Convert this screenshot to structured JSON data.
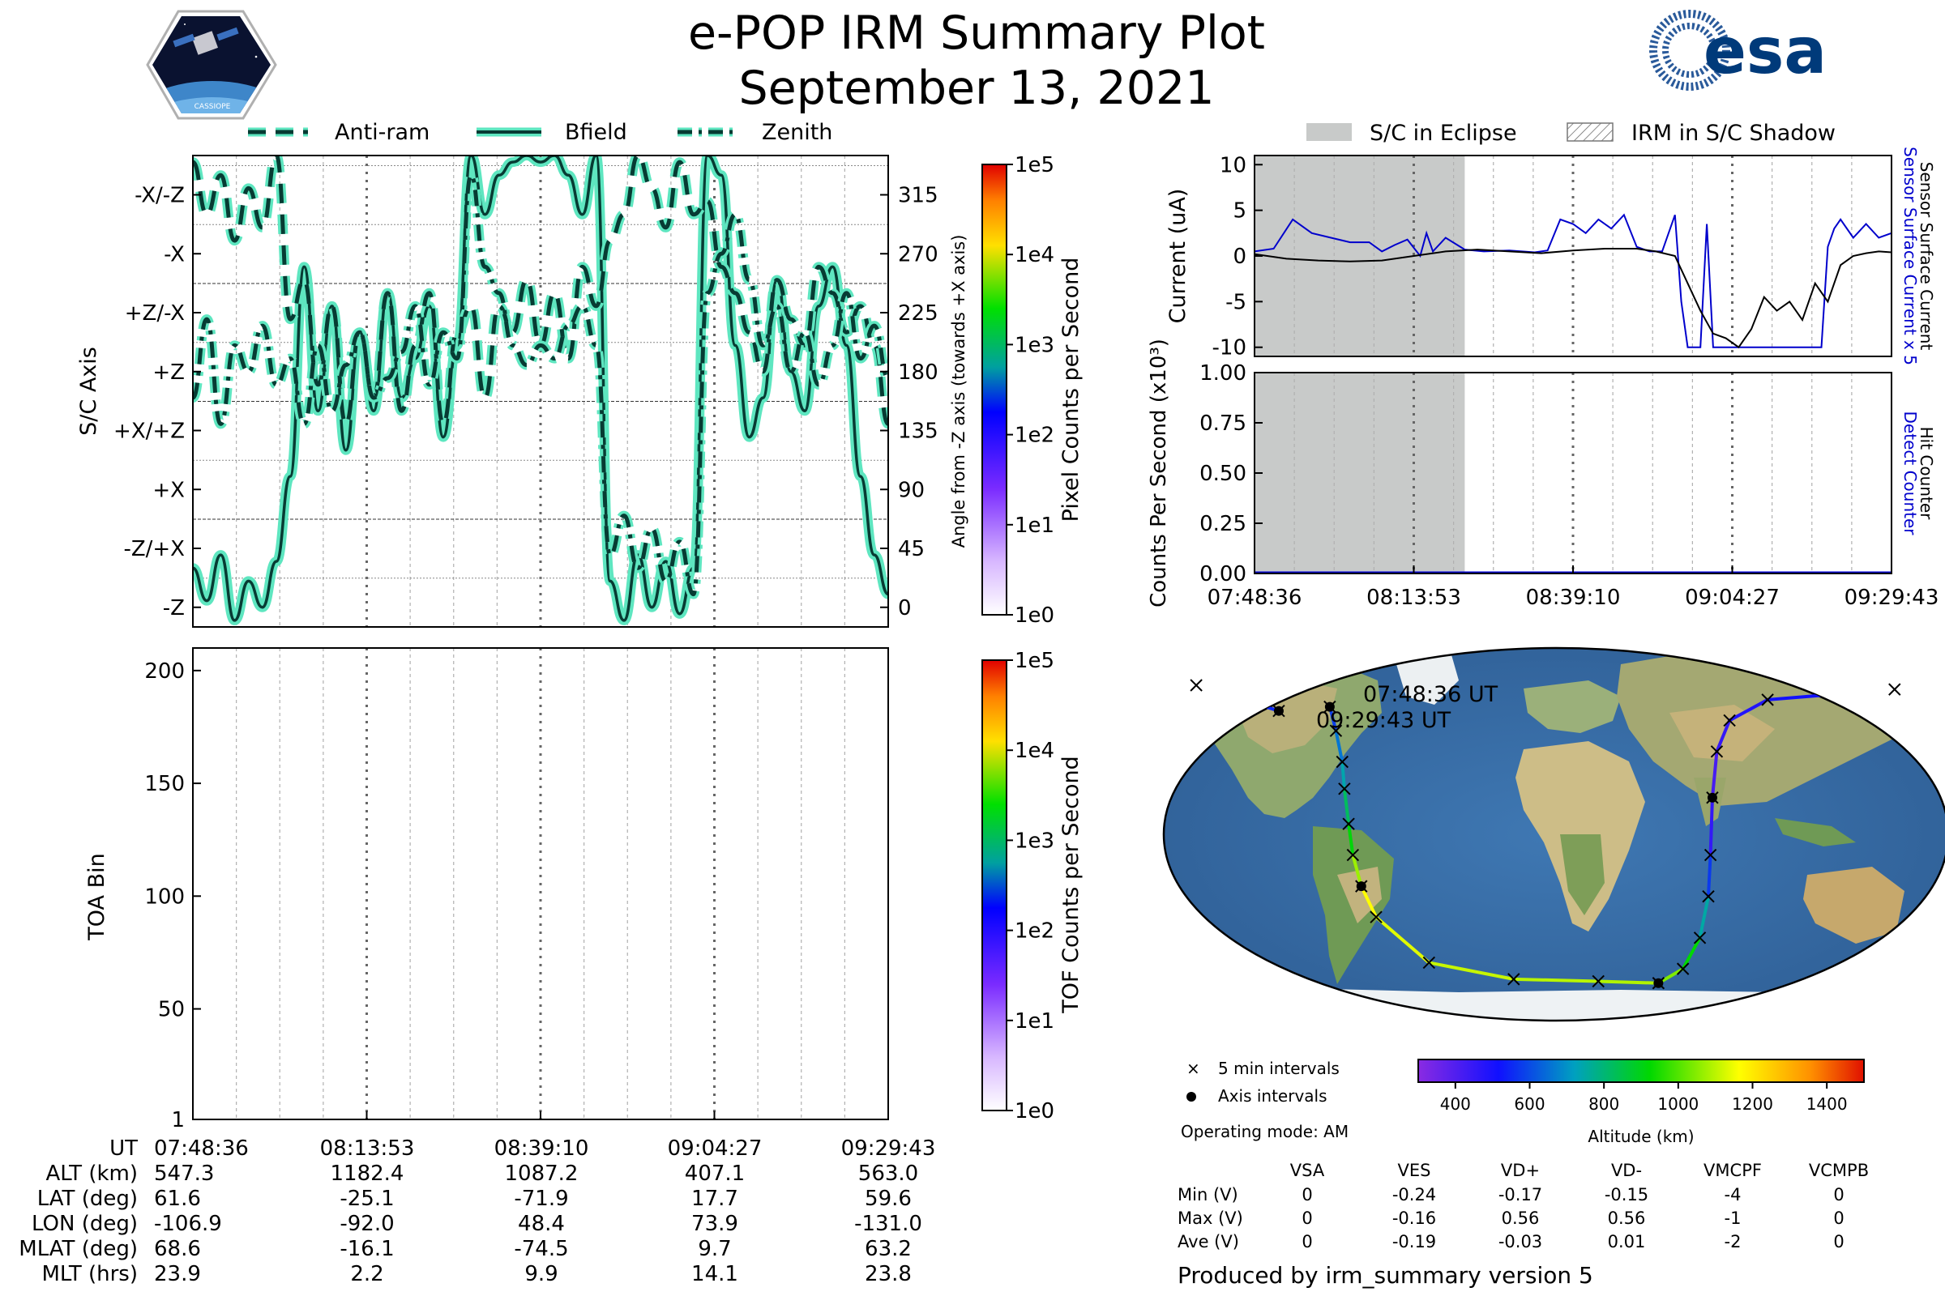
{
  "header": {
    "title": "e-POP IRM Summary Plot",
    "date": "September 13, 2021",
    "mission_logo_text": "CASSIOPE",
    "agency_logo_text": "esa"
  },
  "colors": {
    "trace_fill": "#5ee6c0",
    "trace_edge": "#073b33",
    "eclipse": "#c8cac9",
    "current_blue": "#0000cc",
    "counter_blue": "#0000cc"
  },
  "chart_data": [
    {
      "id": "sc-axis",
      "type": "line",
      "ylabel": "S/C Axis",
      "ylabel_right": "Angle from -Z axis (towards +X axis)",
      "y_axis_labels": [
        "-X/-Z",
        "-X",
        "+Z/-X",
        "+Z",
        "+X/+Z",
        "+X",
        "-Z/+X",
        "-Z"
      ],
      "y_right_ticks": [
        315,
        270,
        225,
        180,
        135,
        90,
        45,
        0
      ],
      "ylim": [
        -15,
        345
      ],
      "legend": [
        "Anti-ram",
        "Bfield",
        "Zenith"
      ],
      "legend_placement": "top",
      "colorbar": {
        "label": "Pixel Counts per Second",
        "ticks": [
          "1e0",
          "1e1",
          "1e2",
          "1e3",
          "1e4",
          "1e5"
        ]
      },
      "series": [
        {
          "name": "Bfield",
          "style": "solid",
          "x": [
            0,
            0.02,
            0.04,
            0.06,
            0.08,
            0.1,
            0.12,
            0.14,
            0.16,
            0.18,
            0.2,
            0.22,
            0.24,
            0.26,
            0.28,
            0.3,
            0.32,
            0.34,
            0.36,
            0.38,
            0.4,
            0.42,
            0.44,
            0.46,
            0.48,
            0.5,
            0.52,
            0.54,
            0.56,
            0.58,
            0.6,
            0.62,
            0.64,
            0.66,
            0.68,
            0.7,
            0.72,
            0.74,
            0.76,
            0.78,
            0.8,
            0.82,
            0.84,
            0.86,
            0.88,
            0.9,
            0.92,
            0.94,
            0.96,
            0.98,
            1
          ],
          "values": [
            30,
            5,
            40,
            -10,
            20,
            0,
            35,
            100,
            260,
            150,
            230,
            120,
            210,
            150,
            240,
            160,
            190,
            230,
            130,
            200,
            345,
            300,
            330,
            340,
            345,
            340,
            345,
            330,
            300,
            345,
            20,
            -10,
            40,
            0,
            35,
            -5,
            30,
            345,
            330,
            200,
            130,
            160,
            250,
            180,
            150,
            230,
            260,
            200,
            100,
            40,
            10
          ]
        },
        {
          "name": "Anti-ram",
          "style": "dashed",
          "x": [
            0,
            0.02,
            0.04,
            0.06,
            0.08,
            0.1,
            0.12,
            0.14,
            0.16,
            0.18,
            0.2,
            0.22,
            0.24,
            0.26,
            0.28,
            0.3,
            0.32,
            0.34,
            0.36,
            0.38,
            0.4,
            0.42,
            0.44,
            0.46,
            0.48,
            0.5,
            0.52,
            0.54,
            0.56,
            0.58,
            0.6,
            0.62,
            0.64,
            0.66,
            0.68,
            0.7,
            0.72,
            0.74,
            0.76,
            0.78,
            0.8,
            0.82,
            0.84,
            0.86,
            0.88,
            0.9,
            0.92,
            0.94,
            0.96,
            0.98,
            1
          ],
          "values": [
            340,
            300,
            330,
            280,
            320,
            290,
            345,
            220,
            250,
            170,
            230,
            140,
            210,
            160,
            240,
            150,
            200,
            240,
            140,
            210,
            230,
            160,
            230,
            210,
            250,
            200,
            240,
            190,
            260,
            230,
            280,
            300,
            345,
            320,
            290,
            340,
            300,
            310,
            260,
            240,
            210,
            180,
            250,
            220,
            200,
            260,
            240,
            210,
            230,
            200,
            140
          ]
        },
        {
          "name": "Zenith",
          "style": "dashdot",
          "x": [
            0,
            0.02,
            0.04,
            0.06,
            0.08,
            0.1,
            0.12,
            0.14,
            0.16,
            0.18,
            0.2,
            0.22,
            0.24,
            0.26,
            0.28,
            0.3,
            0.32,
            0.34,
            0.36,
            0.38,
            0.4,
            0.42,
            0.44,
            0.46,
            0.48,
            0.5,
            0.52,
            0.54,
            0.56,
            0.58,
            0.6,
            0.62,
            0.64,
            0.66,
            0.68,
            0.7,
            0.72,
            0.74,
            0.76,
            0.78,
            0.8,
            0.82,
            0.84,
            0.86,
            0.88,
            0.9,
            0.92,
            0.94,
            0.96,
            0.98,
            1
          ],
          "values": [
            160,
            220,
            140,
            200,
            180,
            215,
            170,
            190,
            140,
            200,
            150,
            185,
            210,
            160,
            175,
            195,
            230,
            170,
            210,
            190,
            330,
            260,
            240,
            200,
            185,
            200,
            190,
            215,
            230,
            200,
            40,
            70,
            30,
            60,
            20,
            50,
            10,
            240,
            270,
            300,
            250,
            200,
            230,
            180,
            210,
            170,
            200,
            240,
            190,
            215,
            175
          ]
        }
      ]
    },
    {
      "id": "toa",
      "type": "heatmap",
      "ylabel": "TOA Bin",
      "y_ticks": [
        1,
        50,
        100,
        150,
        200
      ],
      "ylim": [
        1,
        210
      ],
      "colorbar": {
        "label": "TOF Counts per Second",
        "ticks": [
          "1e0",
          "1e1",
          "1e2",
          "1e3",
          "1e4",
          "1e5"
        ]
      },
      "values": []
    },
    {
      "id": "current",
      "type": "line",
      "ylabel": "Current (uA)",
      "ylabel_right_1": "Sensor Surface Current x 5",
      "ylabel_right_2": "Sensor Surface Current",
      "y_ticks": [
        10,
        5,
        0,
        -5,
        -10
      ],
      "ylim": [
        -11,
        11
      ],
      "legend": [
        "S/C in Eclipse",
        "IRM in S/C Shadow"
      ],
      "legend_placement": "top",
      "eclipse_x": [
        0,
        0.33
      ],
      "series": [
        {
          "name": "Sensor Surface Current x 5",
          "color": "#0000cc",
          "x": [
            0,
            0.03,
            0.06,
            0.09,
            0.12,
            0.15,
            0.18,
            0.2,
            0.22,
            0.24,
            0.26,
            0.27,
            0.28,
            0.3,
            0.33,
            0.36,
            0.4,
            0.44,
            0.46,
            0.48,
            0.5,
            0.52,
            0.54,
            0.56,
            0.58,
            0.6,
            0.62,
            0.64,
            0.66,
            0.67,
            0.68,
            0.69,
            0.7,
            0.71,
            0.72,
            0.73,
            0.74,
            0.75,
            0.76,
            0.77,
            0.78,
            0.8,
            0.82,
            0.84,
            0.86,
            0.88,
            0.89,
            0.9,
            0.91,
            0.92,
            0.94,
            0.96,
            0.98,
            1
          ],
          "values": [
            0.5,
            0.8,
            4,
            2.5,
            2,
            1.5,
            1.5,
            0.5,
            1.2,
            1.8,
            0,
            2.5,
            0.5,
            2,
            0.7,
            0.5,
            0.6,
            0.4,
            0.6,
            4,
            3.5,
            2.5,
            4,
            3,
            4.5,
            1,
            0.5,
            0.5,
            4.5,
            -5,
            -10,
            -10,
            -10,
            3.5,
            -10,
            -10,
            -10,
            -10,
            -10,
            -10,
            -10,
            -10,
            -10,
            -10,
            -10,
            -10,
            -10,
            1,
            3,
            4,
            2,
            3.5,
            2,
            2.5
          ]
        },
        {
          "name": "Sensor Surface Current",
          "color": "#000000",
          "x": [
            0,
            0.05,
            0.1,
            0.15,
            0.2,
            0.25,
            0.3,
            0.35,
            0.4,
            0.45,
            0.5,
            0.55,
            0.6,
            0.63,
            0.66,
            0.68,
            0.7,
            0.72,
            0.74,
            0.76,
            0.78,
            0.8,
            0.82,
            0.84,
            0.86,
            0.88,
            0.9,
            0.92,
            0.94,
            0.96,
            0.98,
            1
          ],
          "values": [
            0.2,
            -0.3,
            -0.5,
            -0.6,
            -0.5,
            0,
            0.5,
            0.7,
            0.5,
            0.3,
            0.6,
            0.8,
            0.8,
            0.5,
            0,
            -3,
            -6,
            -8.5,
            -9,
            -10,
            -8,
            -4.5,
            -6,
            -5,
            -7,
            -3,
            -5,
            -1,
            0,
            0.3,
            0.5,
            0.4
          ]
        }
      ]
    },
    {
      "id": "counts",
      "type": "line",
      "ylabel": "Counts Per Second (x10³)",
      "ylabel_right_1": "Detect Counter",
      "ylabel_right_2": "Hit Counter",
      "y_ticks": [
        "1.00",
        "0.75",
        "0.50",
        "0.25",
        "0.00"
      ],
      "ylim": [
        0,
        1
      ],
      "eclipse_x": [
        0,
        0.33
      ],
      "x_tick_labels": [
        "07:48:36",
        "08:13:53",
        "08:39:10",
        "09:04:27",
        "09:29:43"
      ],
      "series": [
        {
          "name": "Detect Counter",
          "values": [
            0,
            0,
            0,
            0,
            0
          ]
        },
        {
          "name": "Hit Counter",
          "values": [
            0,
            0,
            0,
            0,
            0
          ]
        }
      ]
    },
    {
      "id": "orbit-map",
      "type": "scatter",
      "annotations": [
        "07:48:36 UT",
        "09:29:43 UT"
      ],
      "legend": [
        "5 min intervals",
        "Axis intervals"
      ],
      "colorbar": {
        "label": "Altitude (km)",
        "ticks": [
          400,
          600,
          800,
          1000,
          1200,
          1400
        ],
        "range": [
          300,
          1500
        ]
      },
      "track": [
        {
          "lon": -106.9,
          "lat": 61.6,
          "alt": 547
        },
        {
          "lon": -104,
          "lat": 50,
          "alt": 620
        },
        {
          "lon": -101,
          "lat": 35,
          "alt": 700
        },
        {
          "lon": -100,
          "lat": 22,
          "alt": 780
        },
        {
          "lon": -98,
          "lat": 5,
          "alt": 870
        },
        {
          "lon": -96,
          "lat": -10,
          "alt": 960
        },
        {
          "lon": -92.0,
          "lat": -25.1,
          "alt": 1182
        },
        {
          "lon": -85,
          "lat": -40,
          "alt": 1150
        },
        {
          "lon": -60,
          "lat": -62,
          "alt": 1120
        },
        {
          "lon": -20,
          "lat": -70,
          "alt": 1100
        },
        {
          "lon": 20,
          "lat": -71,
          "alt": 1095
        },
        {
          "lon": 48.4,
          "lat": -71.9,
          "alt": 1087
        },
        {
          "lon": 60,
          "lat": -65,
          "alt": 1000
        },
        {
          "lon": 68,
          "lat": -50,
          "alt": 850
        },
        {
          "lon": 72,
          "lat": -30,
          "alt": 650
        },
        {
          "lon": 73,
          "lat": -10,
          "alt": 500
        },
        {
          "lon": 73.9,
          "lat": 17.7,
          "alt": 407
        },
        {
          "lon": 76,
          "lat": 40,
          "alt": 430
        },
        {
          "lon": 82,
          "lat": 55,
          "alt": 470
        },
        {
          "lon": 100,
          "lat": 65,
          "alt": 500
        },
        {
          "lon": 160,
          "lat": 70,
          "alt": 530
        },
        {
          "lon": -170,
          "lat": 72,
          "alt": 540
        },
        {
          "lon": -131.0,
          "lat": 59.6,
          "alt": 563
        }
      ]
    }
  ],
  "time_ticks": [
    "07:48:36",
    "08:13:53",
    "08:39:10",
    "09:04:27",
    "09:29:43"
  ],
  "orbit_table": {
    "headers": [
      "UT",
      "ALT (km)",
      "LAT (deg)",
      "LON (deg)",
      "MLAT (deg)",
      "MLT (hrs)"
    ],
    "columns": [
      [
        "07:48:36",
        "547.3",
        "61.6",
        "-106.9",
        "68.6",
        "23.9"
      ],
      [
        "08:13:53",
        "1182.4",
        "-25.1",
        "-92.0",
        "-16.1",
        "2.2"
      ],
      [
        "08:39:10",
        "1087.2",
        "-71.9",
        "48.4",
        "-74.5",
        "9.9"
      ],
      [
        "09:04:27",
        "407.1",
        "17.7",
        "73.9",
        "9.7",
        "14.1"
      ],
      [
        "09:29:43",
        "563.0",
        "59.6",
        "-131.0",
        "63.2",
        "23.8"
      ]
    ]
  },
  "operating_mode": "Operating mode: AM",
  "voltage_table": {
    "columns": [
      "VSA",
      "VES",
      "VD+",
      "VD-",
      "VMCPF",
      "VCMPB"
    ],
    "rows": [
      {
        "label": "Min (V)",
        "values": [
          "0",
          "-0.24",
          "-0.17",
          "-0.15",
          "-4",
          "0"
        ]
      },
      {
        "label": "Max (V)",
        "values": [
          "0",
          "-0.16",
          "0.56",
          "0.56",
          "-1",
          "0"
        ]
      },
      {
        "label": "Ave (V)",
        "values": [
          "0",
          "-0.19",
          "-0.03",
          "0.01",
          "-2",
          "0"
        ]
      }
    ]
  },
  "footer": "Produced by irm_summary version 5"
}
